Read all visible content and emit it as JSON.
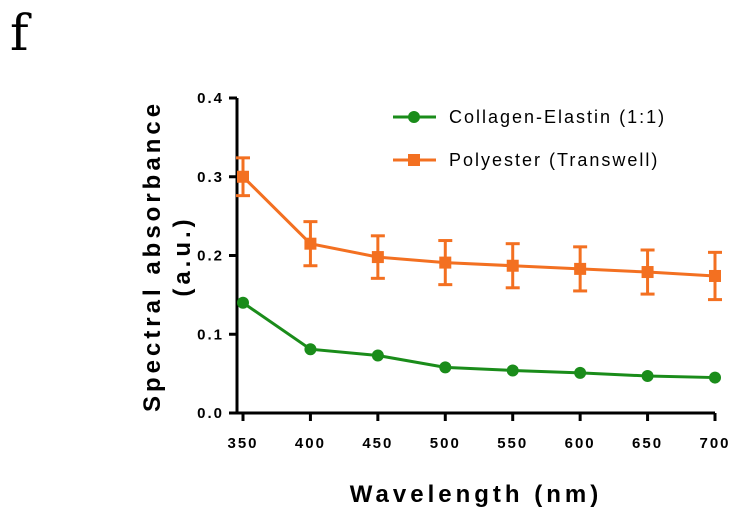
{
  "panel_label": "f",
  "chart_data": {
    "type": "line",
    "xlabel": "Wavelength (nm)",
    "ylabel_line1": "Spectral absorbance",
    "ylabel_line2": "(a.u.)",
    "x": [
      350,
      400,
      450,
      500,
      550,
      600,
      650,
      700
    ],
    "xlim": [
      350,
      700
    ],
    "ylim": [
      0.0,
      0.4
    ],
    "x_ticks": [
      "350",
      "400",
      "450",
      "500",
      "550",
      "600",
      "650",
      "700"
    ],
    "y_ticks": [
      "0.0",
      "0.1",
      "0.2",
      "0.3",
      "0.4"
    ],
    "grid": false,
    "legend_position": "top-right",
    "series": [
      {
        "name": "Collagen-Elastin (1:1)",
        "color": "#1a8c1a",
        "marker": "circle",
        "values": [
          0.14,
          0.081,
          0.073,
          0.058,
          0.054,
          0.051,
          0.047,
          0.045
        ]
      },
      {
        "name": "Polyester (Transwell)",
        "color": "#f37021",
        "marker": "square",
        "values": [
          0.3,
          0.215,
          0.198,
          0.191,
          0.187,
          0.183,
          0.179,
          0.174
        ],
        "error": [
          0.024,
          0.028,
          0.027,
          0.028,
          0.028,
          0.028,
          0.028,
          0.03
        ]
      }
    ]
  }
}
